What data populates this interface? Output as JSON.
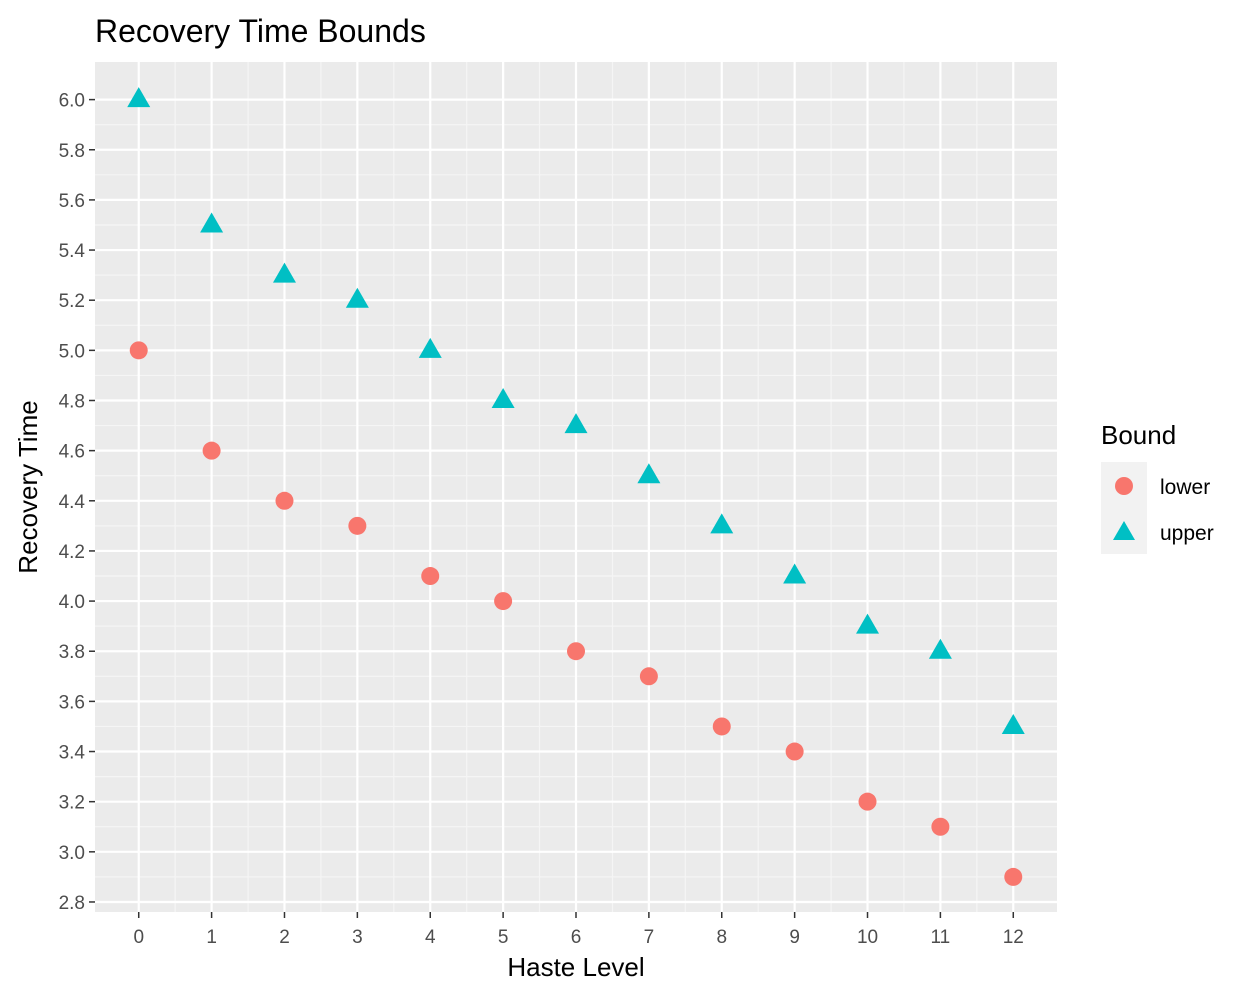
{
  "chart_data": {
    "type": "scatter",
    "title": "Recovery Time Bounds",
    "xlabel": "Haste Level",
    "ylabel": "Recovery Time",
    "x": [
      0,
      1,
      2,
      3,
      4,
      5,
      6,
      7,
      8,
      9,
      10,
      11,
      12
    ],
    "xlim": [
      -0.6,
      12.6
    ],
    "ylim": [
      2.76,
      6.15
    ],
    "xticks": [
      "0",
      "1",
      "2",
      "3",
      "4",
      "5",
      "6",
      "7",
      "8",
      "9",
      "10",
      "11",
      "12"
    ],
    "yticks": [
      "2.8",
      "3.0",
      "3.2",
      "3.4",
      "3.6",
      "3.8",
      "4.0",
      "4.2",
      "4.4",
      "4.6",
      "4.8",
      "5.0",
      "5.2",
      "5.4",
      "5.6",
      "5.8",
      "6.0"
    ],
    "grid": true,
    "legend": {
      "title": "Bound",
      "placement": "right"
    },
    "series": [
      {
        "name": "lower",
        "shape": "circle",
        "color": "#F8766D",
        "values": [
          5.0,
          4.6,
          4.4,
          4.3,
          4.1,
          4.0,
          3.8,
          3.7,
          3.5,
          3.4,
          3.2,
          3.1,
          2.9
        ]
      },
      {
        "name": "upper",
        "shape": "triangle",
        "color": "#00BFC4",
        "values": [
          6.0,
          5.5,
          5.3,
          5.2,
          5.0,
          4.8,
          4.7,
          4.5,
          4.3,
          4.1,
          3.9,
          3.8,
          3.5
        ]
      }
    ]
  }
}
